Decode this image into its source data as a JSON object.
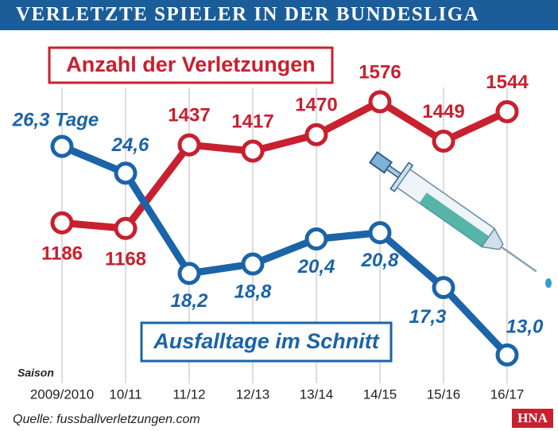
{
  "chart_data": {
    "type": "line",
    "title": "VERLETZTE SPIELER IN DER BUNDESLIGA",
    "x_label": "Saison",
    "categories": [
      "2009/2010",
      "10/11",
      "11/12",
      "12/13",
      "13/14",
      "14/15",
      "15/16",
      "16/17"
    ],
    "series": [
      {
        "name": "Anzahl der Verletzungen",
        "color": "#c8202f",
        "axis": "y",
        "values": [
          1186,
          1168,
          1437,
          1417,
          1470,
          1576,
          1449,
          1544
        ]
      },
      {
        "name": "Ausfalltage im Schnitt",
        "color": "#1b64a8",
        "axis": "y2",
        "values": [
          26.3,
          24.6,
          18.2,
          18.8,
          20.4,
          20.8,
          17.3,
          13.0
        ],
        "value_labels": [
          "26,3 Tage",
          "24,6",
          "18,2",
          "18,8",
          "20,4",
          "20,8",
          "17,3",
          "13,0"
        ]
      }
    ],
    "ylim": [
      700,
      1750
    ],
    "y2lim": [
      11.8,
      32.6
    ],
    "source": "Quelle: fussballverletzungen.com",
    "logo": "HNA"
  }
}
